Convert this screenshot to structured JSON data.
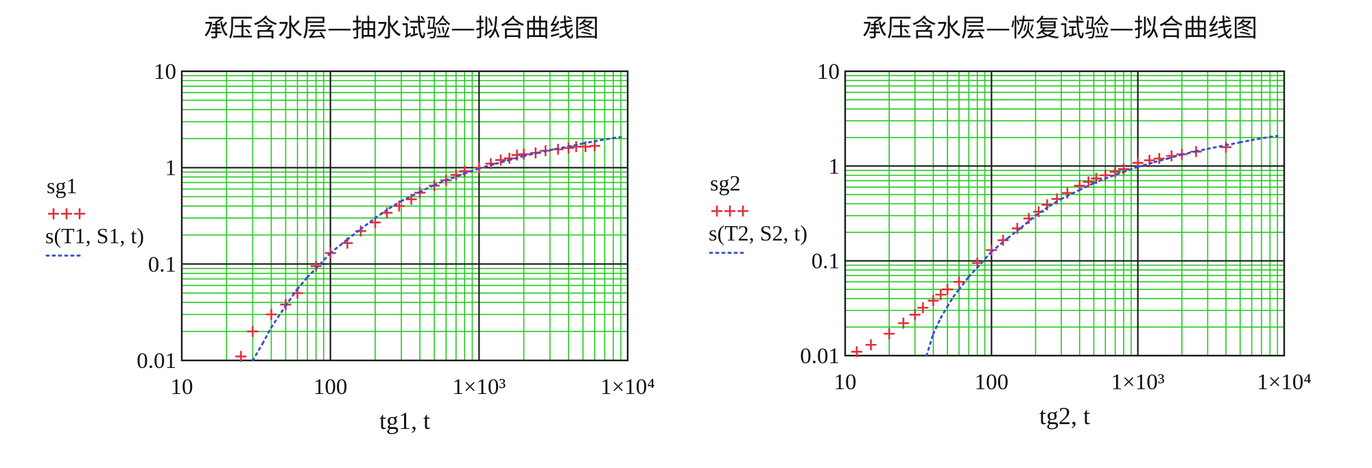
{
  "chart_data": [
    {
      "type": "scatter",
      "title": "承压含水层—抽水试验—拟合曲线图",
      "xlabel": "tg1, t",
      "ylabel": "",
      "xscale": "log",
      "yscale": "log",
      "xlim": [
        10,
        10000
      ],
      "ylim": [
        0.01,
        10
      ],
      "grid": true,
      "x_tick_labels": [
        "10",
        "100",
        "1×10³",
        "1×10⁴"
      ],
      "y_tick_labels": [
        "10",
        "1",
        "0.1",
        "0.01"
      ],
      "legend": {
        "placement": "left",
        "entries": [
          {
            "name": "sg1",
            "marker": "+++"
          },
          {
            "name": "s(T1, S1, t)",
            "marker": "dotted"
          }
        ]
      },
      "series": [
        {
          "name": "sg1",
          "style": "plus",
          "color": "#e0303a",
          "x": [
            25,
            30,
            40,
            50,
            60,
            80,
            100,
            130,
            160,
            200,
            240,
            290,
            350,
            400,
            500,
            600,
            700,
            800,
            1000,
            1200,
            1400,
            1600,
            1800,
            2000,
            2400,
            2800,
            3400,
            4000,
            4500,
            5200,
            6000
          ],
          "y": [
            0.011,
            0.02,
            0.03,
            0.038,
            0.05,
            0.095,
            0.13,
            0.165,
            0.22,
            0.27,
            0.34,
            0.4,
            0.47,
            0.55,
            0.65,
            0.74,
            0.84,
            0.92,
            1.0,
            1.1,
            1.2,
            1.25,
            1.35,
            1.38,
            1.42,
            1.5,
            1.55,
            1.6,
            1.65,
            1.65,
            1.68
          ]
        },
        {
          "name": "s(T1, S1, t)",
          "style": "dotted",
          "color": "#3a4fd0",
          "x": [
            30,
            35,
            40,
            50,
            60,
            70,
            80,
            100,
            130,
            160,
            200,
            250,
            300,
            400,
            500,
            600,
            800,
            1000,
            1300,
            1600,
            2000,
            2500,
            3000,
            4000,
            5000,
            6000,
            8000,
            9000
          ],
          "y": [
            0.01,
            0.015,
            0.022,
            0.037,
            0.055,
            0.073,
            0.09,
            0.13,
            0.18,
            0.23,
            0.3,
            0.38,
            0.45,
            0.56,
            0.66,
            0.74,
            0.87,
            0.98,
            1.1,
            1.2,
            1.32,
            1.43,
            1.52,
            1.66,
            1.78,
            1.88,
            2.03,
            2.08
          ]
        }
      ]
    },
    {
      "type": "scatter",
      "title": "承压含水层—恢复试验—拟合曲线图",
      "xlabel": "tg2, t",
      "ylabel": "",
      "xscale": "log",
      "yscale": "log",
      "xlim": [
        10,
        10000
      ],
      "ylim": [
        0.01,
        10
      ],
      "grid": true,
      "x_tick_labels": [
        "10",
        "100",
        "1×10³",
        "1×10⁴"
      ],
      "y_tick_labels": [
        "10",
        "1",
        "0.1",
        "0.01"
      ],
      "legend": {
        "placement": "left",
        "entries": [
          {
            "name": "sg2",
            "marker": "+++"
          },
          {
            "name": "s(T2, S2, t)",
            "marker": "dotted"
          }
        ]
      },
      "series": [
        {
          "name": "sg2",
          "style": "plus",
          "color": "#e0303a",
          "x": [
            12,
            15,
            20,
            25,
            30,
            34,
            40,
            45,
            50,
            60,
            80,
            100,
            120,
            150,
            180,
            210,
            240,
            280,
            330,
            400,
            460,
            520,
            600,
            700,
            800,
            1000,
            1200,
            1400,
            1700,
            2000,
            2500,
            4000
          ],
          "y": [
            0.011,
            0.013,
            0.017,
            0.022,
            0.027,
            0.032,
            0.038,
            0.044,
            0.05,
            0.06,
            0.095,
            0.13,
            0.165,
            0.22,
            0.28,
            0.33,
            0.39,
            0.45,
            0.52,
            0.62,
            0.68,
            0.74,
            0.8,
            0.87,
            0.93,
            1.08,
            1.15,
            1.2,
            1.28,
            1.33,
            1.42,
            1.58
          ]
        },
        {
          "name": "s(T2, S2, t)",
          "style": "dotted",
          "color": "#3a4fd0",
          "x": [
            36,
            40,
            45,
            50,
            55,
            60,
            70,
            80,
            100,
            130,
            160,
            200,
            250,
            300,
            400,
            500,
            600,
            800,
            1000,
            1300,
            1600,
            2000,
            2500,
            3000,
            4000,
            5000,
            6000,
            8000,
            9000
          ],
          "y": [
            0.01,
            0.017,
            0.025,
            0.033,
            0.042,
            0.05,
            0.068,
            0.085,
            0.125,
            0.175,
            0.225,
            0.3,
            0.38,
            0.45,
            0.56,
            0.66,
            0.74,
            0.87,
            0.98,
            1.1,
            1.2,
            1.32,
            1.43,
            1.52,
            1.66,
            1.78,
            1.88,
            2.03,
            2.08
          ]
        }
      ]
    }
  ]
}
